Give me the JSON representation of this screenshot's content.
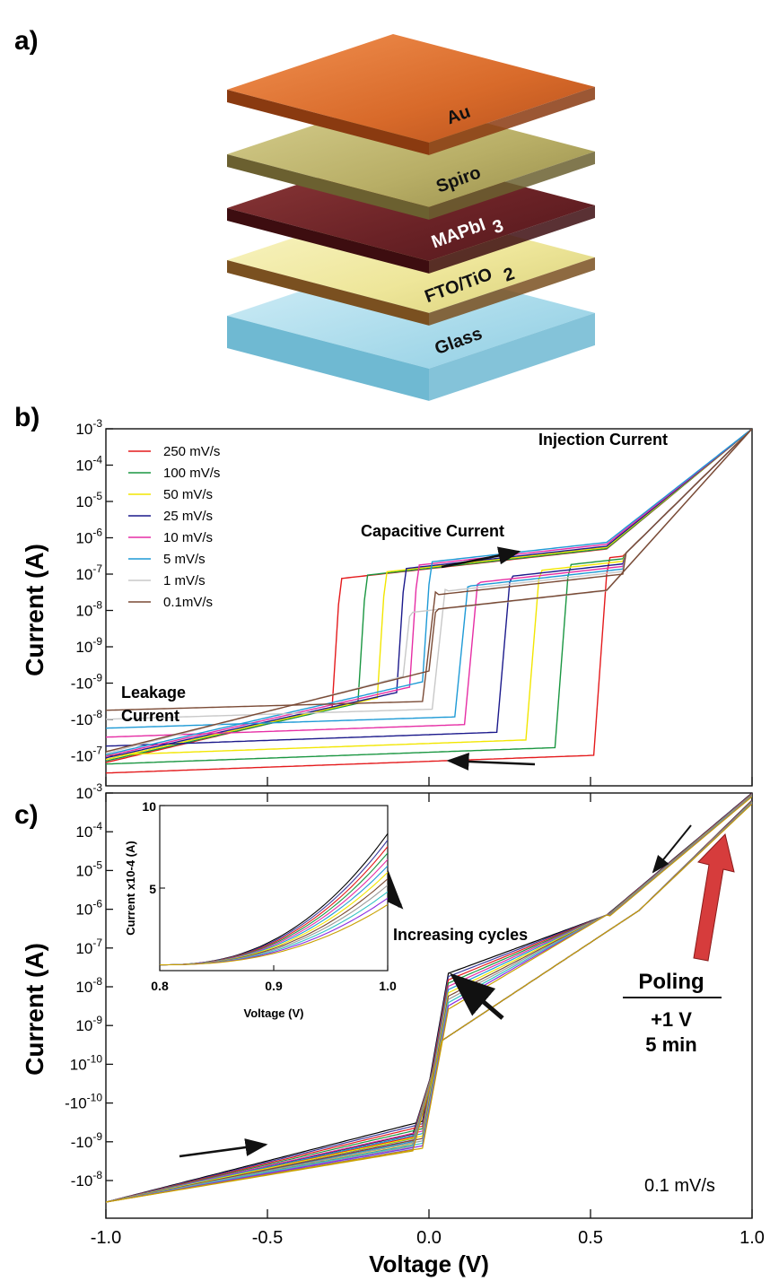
{
  "panel_labels": {
    "a": "a)",
    "b": "b)",
    "c": "c)"
  },
  "layers": [
    {
      "name": "Au",
      "sub": "",
      "top": "#e8803e",
      "bottom": "#8a3a10",
      "text": "#111111"
    },
    {
      "name": "Spiro",
      "sub": "",
      "top": "#c9c07a",
      "bottom": "#6b6030",
      "text": "#111111"
    },
    {
      "name": "MAPbI",
      "sub": "3",
      "top": "#7a2a2a",
      "bottom": "#3d0d10",
      "text": "#ffffff"
    },
    {
      "name": "FTO/TiO",
      "sub": "2",
      "top": "#f3efb0",
      "bottom": "#7a5020",
      "text": "#111111"
    },
    {
      "name": "Glass",
      "sub": "",
      "top": "#bfe6f2",
      "bottom": "#6fb9d2",
      "text": "#111111"
    }
  ],
  "chart_data": [
    {
      "type": "line",
      "panel": "b",
      "ylabel": "Current (A)",
      "xlim": [
        -1.0,
        1.0
      ],
      "y_tick_labels": [
        "10-3",
        "10-4",
        "10-5",
        "10-6",
        "10-7",
        "10-8",
        "10-9",
        "-10-9",
        "-10-8",
        "-10-7"
      ],
      "series": [
        {
          "name": "250 mV/s",
          "color": "#e41a1c",
          "step_v": 0.53,
          "step_back_v": -0.3
        },
        {
          "name": "100 mV/s",
          "color": "#1a9641",
          "step_v": 0.41,
          "step_back_v": -0.22
        },
        {
          "name": "50 mV/s",
          "color": "#f2e600",
          "step_v": 0.32,
          "step_back_v": -0.16
        },
        {
          "name": "25 mV/s",
          "color": "#1c1a8c",
          "step_v": 0.23,
          "step_back_v": -0.1
        },
        {
          "name": "10 mV/s",
          "color": "#e62ea5",
          "step_v": 0.13,
          "step_back_v": -0.06
        },
        {
          "name": "5 mV/s",
          "color": "#1e9ad6",
          "step_v": 0.1,
          "step_back_v": -0.02
        },
        {
          "name": "1 mV/s",
          "color": "#c8c8c8",
          "step_v": 0.03,
          "step_back_v": -0.08
        },
        {
          "name": "0.1mV/s",
          "color": "#7a4a35",
          "step_v": 0.0,
          "step_back_v": 0.0
        }
      ],
      "annotations": {
        "injection": "Injection Current",
        "capacitive": "Capacitive Current",
        "leakage_1": "Leakage",
        "leakage_2": "Current"
      }
    },
    {
      "type": "line",
      "panel": "c",
      "ylabel": "Current (A)",
      "xlabel": "Voltage (V)",
      "xlim": [
        -1.0,
        1.0
      ],
      "x_tick_labels": [
        "-1.0",
        "-0.5",
        "0.0",
        "0.5",
        "1.0"
      ],
      "y_tick_labels": [
        "10-3",
        "10-4",
        "10-5",
        "10-6",
        "10-7",
        "10-8",
        "10-9",
        "10-10",
        "-10-10",
        "-10-9",
        "-10-8"
      ],
      "cycle_colors": [
        "#000000",
        "#3b3b9e",
        "#e41a1c",
        "#1a9641",
        "#e62ea5",
        "#1e9ad6",
        "#f2e600",
        "#7a4a35",
        "#9a9a9a",
        "#33c3c3",
        "#8a2be2",
        "#c8a000"
      ],
      "annotations": {
        "increasing": "Increasing cycles",
        "poling": "Poling",
        "voltage": "+1 V",
        "time": "5 min",
        "rate": "0.1 mV/s"
      },
      "inset": {
        "xlabel": "Voltage (V)",
        "ylabel": "Current x10-4 (A)",
        "x_tick_labels": [
          "0.8",
          "0.9",
          "1.0"
        ],
        "y_tick_labels": [
          "10",
          "5"
        ],
        "xlim": [
          0.8,
          1.0
        ],
        "ylim": [
          0,
          10
        ]
      }
    }
  ]
}
